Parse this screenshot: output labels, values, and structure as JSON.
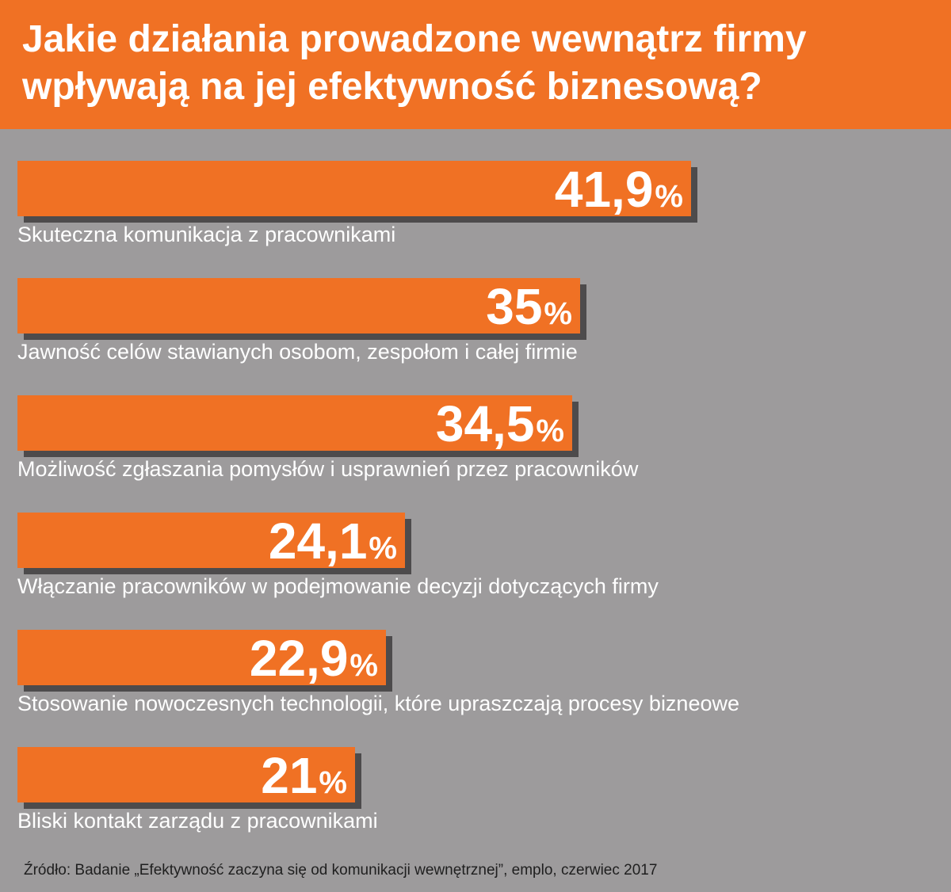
{
  "header": {
    "title": "Jakie działania prowadzone wewnątrz firmy wpływają na jej efektywność biznesową?"
  },
  "colors": {
    "accent": "#f07124",
    "background": "#9d9b9c",
    "shadow": "#4d4b4c"
  },
  "chart_data": {
    "type": "bar",
    "orientation": "horizontal",
    "title": "Jakie działania prowadzone wewnątrz firmy wpływają na jej efektywność biznesową?",
    "unit": "%",
    "categories": [
      "Skuteczna komunikacja z pracownikami",
      "Jawność celów stawianych osobom, zespołom i całej firmie",
      "Możliwość zgłaszania pomysłów i usprawnień przez pracowników",
      "Włączanie pracowników w podejmowanie decyzji dotyczących firmy",
      "Stosowanie nowoczesnych technologii, które upraszczają procesy bizneowe",
      "Bliski kontakt zarządu z pracownikami"
    ],
    "values": [
      41.9,
      35,
      34.5,
      24.1,
      22.9,
      21
    ],
    "value_labels": [
      "41,9",
      "35",
      "34,5",
      "24,1",
      "22,9",
      "21"
    ],
    "grid": false
  },
  "source": "Źródło: Badanie „Efektywność zaczyna się od komunikacji wewnętrznej”, emplo, czerwiec 2017"
}
